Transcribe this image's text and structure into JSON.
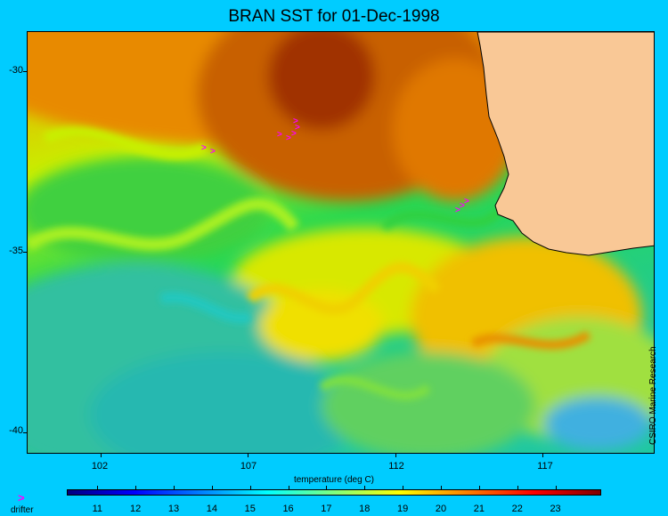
{
  "title": "BRAN SST for 01-Dec-1998",
  "map": {
    "lat_range": [
      -40.6,
      -28.9
    ],
    "lon_range": [
      99.5,
      120.8
    ],
    "y_ticks": [
      {
        "value": -30,
        "label": "-30"
      },
      {
        "value": -35,
        "label": "-35"
      },
      {
        "value": -40,
        "label": "-40"
      }
    ],
    "x_ticks": [
      {
        "value": 102,
        "label": "102"
      },
      {
        "value": 107,
        "label": "107"
      },
      {
        "value": 112,
        "label": "112"
      },
      {
        "value": 117,
        "label": "117"
      }
    ],
    "land_color": "#f9c896",
    "drifter_color": "#ff00ff"
  },
  "credit": "CSIRO Marine Research",
  "colorbar": {
    "title": "temperature (deg C)",
    "min": 10.2,
    "max": 24.2,
    "labels": [
      "11",
      "12",
      "13",
      "14",
      "15",
      "16",
      "17",
      "18",
      "19",
      "20",
      "21",
      "22",
      "23"
    ],
    "colors": [
      "#00007f",
      "#0000ff",
      "#007fff",
      "#00ffff",
      "#7fff7f",
      "#ffff00",
      "#ff7f00",
      "#ff0000",
      "#7f0000"
    ]
  },
  "legend": {
    "drifter_symbol": ">",
    "drifter_label": "drifter"
  }
}
